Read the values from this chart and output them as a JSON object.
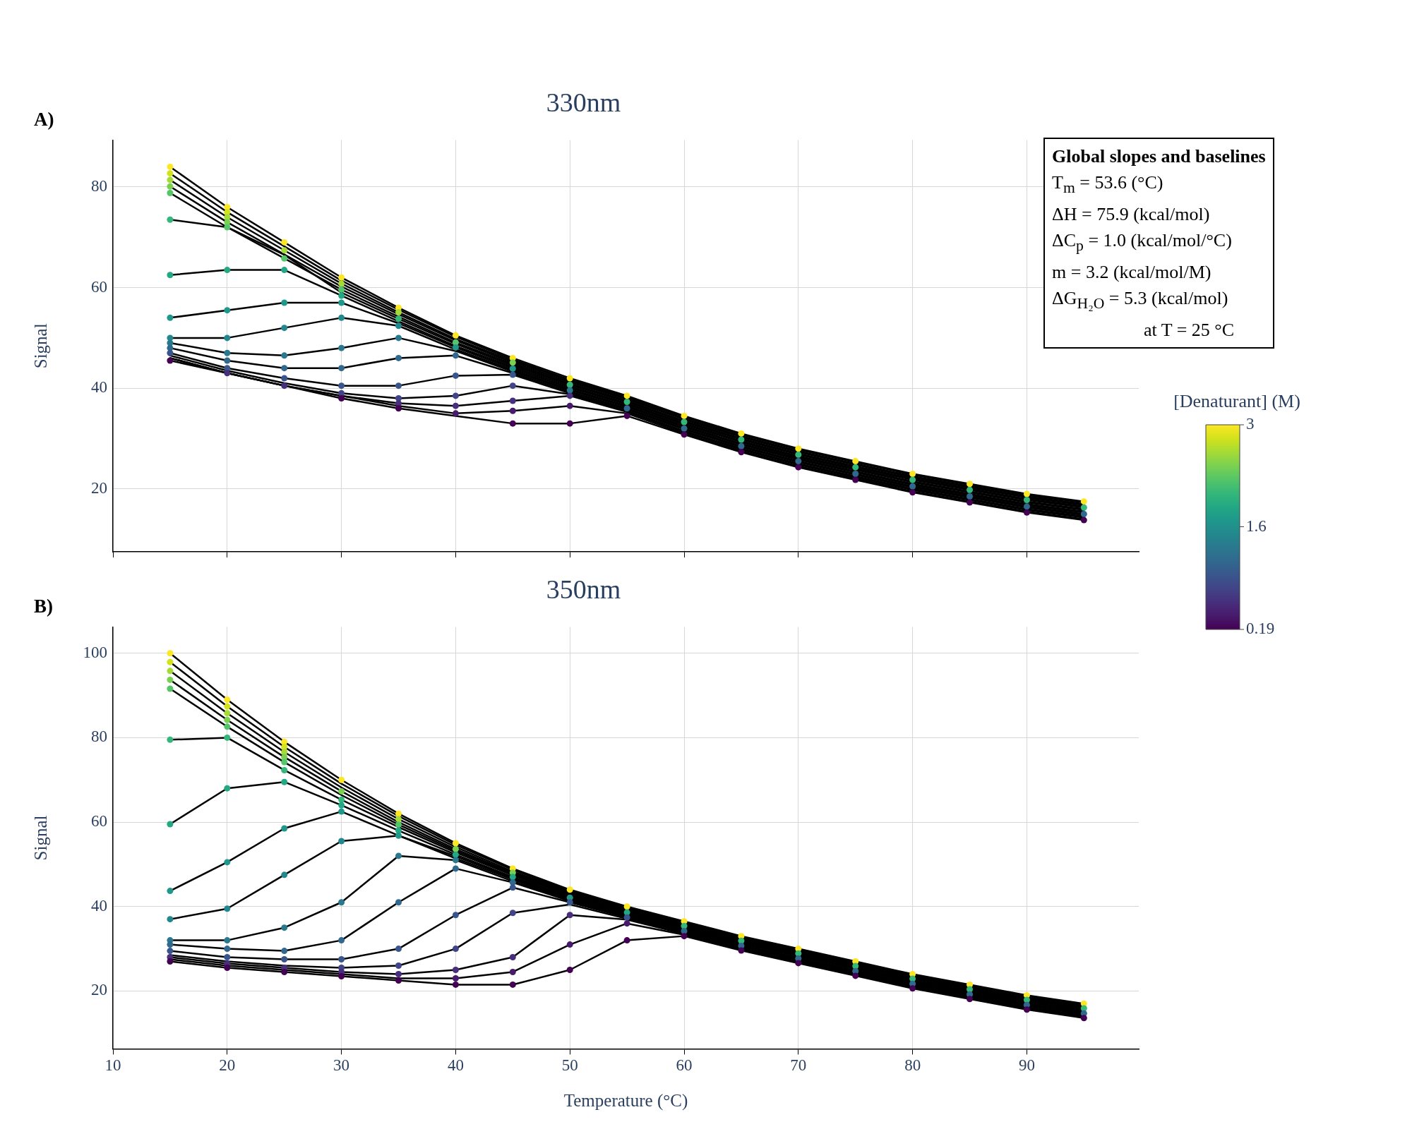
{
  "chart_data": [
    {
      "type": "scatter",
      "title": "330nm",
      "ylabel": "Signal",
      "annotations": [
        "A)",
        "Global slopes and baselines",
        "T$_{m}$ = 53.6 (°C)",
        "ΔH = 75.9 (kcal/mol)",
        "ΔC$_{p}$ = 1.0 (kcal/mol/°C)",
        "m = 3.2 (kcal/mol/M)",
        "ΔG$_{H₂O}$ = 5.3 (kcal/mol)",
        "at T = 25 °C"
      ],
      "x": [
        15,
        20,
        25,
        30,
        35,
        40,
        45,
        50,
        55,
        60,
        65,
        70,
        75,
        80,
        85,
        90,
        95
      ],
      "xlim": [
        10,
        99.8
      ],
      "xticks": [
        10,
        20,
        30,
        40,
        50,
        60,
        70,
        80,
        90
      ],
      "ylim": [
        7.5,
        89.3
      ],
      "yticks": [
        20,
        40,
        60,
        80
      ],
      "grid": true,
      "marker": "circle",
      "tick_labels": "y",
      "clim": [
        0.19,
        3
      ],
      "cticks": [
        0.19,
        1.6,
        3
      ],
      "clabel": "[Denaturant] (M)",
      "series": [
        {
          "type": "scatter",
          "color": "#440154",
          "values": [
            45.5,
            null,
            null,
            38,
            36,
            null,
            33,
            33,
            34.5,
            30.8,
            27.3,
            24.3,
            21.8,
            19.3,
            17.3,
            15.3,
            13.8
          ]
        },
        {
          "type": "scatter",
          "color": "#481a6c",
          "values": [
            null,
            null,
            null,
            null,
            null,
            35,
            35.5,
            36.5,
            null,
            null,
            null,
            null,
            null,
            null,
            null,
            null,
            null
          ]
        },
        {
          "type": "scatter",
          "color": "#472f7d",
          "values": [
            null,
            43,
            40.5,
            null,
            37,
            36.5,
            37.5,
            38.5,
            null,
            null,
            null,
            null,
            null,
            null,
            null,
            null,
            null
          ]
        },
        {
          "type": "scatter",
          "color": "#414487",
          "values": [
            null,
            null,
            null,
            39,
            38,
            38.5,
            40.5,
            null,
            null,
            null,
            null,
            null,
            null,
            null,
            null,
            null,
            null
          ]
        },
        {
          "type": "scatter",
          "color": "#39568c",
          "values": [
            47,
            44,
            42,
            40.5,
            40.5,
            42.5,
            42.7,
            null,
            null,
            null,
            null,
            null,
            null,
            null,
            null,
            null,
            null
          ]
        },
        {
          "type": "scatter",
          "color": "#31688e",
          "values": [
            48,
            45.5,
            44,
            44,
            46,
            46.5,
            null,
            null,
            36,
            32,
            28.5,
            25.5,
            23,
            20.5,
            18.5,
            16.5,
            15
          ]
        },
        {
          "type": "scatter",
          "color": "#2a788e",
          "values": [
            49,
            47,
            46.5,
            48,
            50,
            null,
            null,
            39.6,
            null,
            null,
            null,
            null,
            null,
            null,
            null,
            null,
            null
          ]
        },
        {
          "type": "scatter",
          "color": "#23888e",
          "values": [
            50,
            50,
            52,
            54,
            52.4,
            null,
            null,
            null,
            null,
            null,
            null,
            null,
            null,
            null,
            null,
            null,
            null
          ]
        },
        {
          "type": "scatter",
          "color": "#1f988b",
          "values": [
            54,
            55.5,
            57,
            57,
            null,
            48.1,
            43.9,
            null,
            null,
            null,
            null,
            null,
            null,
            null,
            null,
            null,
            null
          ]
        },
        {
          "type": "scatter",
          "color": "#22a884",
          "values": [
            62.5,
            63.5,
            63.5,
            58.4,
            null,
            null,
            null,
            null,
            null,
            null,
            null,
            null,
            null,
            null,
            null,
            null,
            null
          ]
        },
        {
          "type": "scatter",
          "color": "#35b779",
          "values": [
            73.5,
            null,
            null,
            null,
            53.8,
            null,
            null,
            40.7,
            37.3,
            33.3,
            29.8,
            26.8,
            24.3,
            21.8,
            19.8,
            17.8,
            16.3
          ]
        },
        {
          "type": "scatter",
          "color": "#54c568",
          "values": [
            78.8,
            72,
            65.8,
            59.6,
            null,
            49.1,
            null,
            null,
            null,
            null,
            null,
            null,
            null,
            null,
            null,
            null,
            null
          ]
        },
        {
          "type": "scatter",
          "color": "#7ad151",
          "values": [
            80.1,
            73,
            null,
            null,
            null,
            null,
            45.1,
            null,
            null,
            null,
            null,
            null,
            null,
            null,
            null,
            null,
            null
          ]
        },
        {
          "type": "scatter",
          "color": "#a5db36",
          "values": [
            81.4,
            74,
            67.4,
            60.8,
            55.1,
            null,
            null,
            null,
            null,
            null,
            null,
            null,
            null,
            null,
            null,
            null,
            null
          ]
        },
        {
          "type": "scatter",
          "color": "#d2e21b",
          "values": [
            82.7,
            75,
            null,
            null,
            null,
            null,
            null,
            null,
            null,
            null,
            null,
            null,
            null,
            null,
            null,
            null,
            null
          ]
        },
        {
          "type": "scatter",
          "color": "#fde725",
          "values": [
            84,
            76,
            69,
            62,
            56,
            50.5,
            46,
            42,
            38.5,
            34.5,
            31,
            28,
            25.5,
            23,
            21,
            19,
            17.5
          ]
        },
        {
          "type": "line",
          "marker": "none",
          "color": "#000000",
          "values": [
            45.5,
            43,
            40.5,
            38,
            36,
            34.5,
            33,
            33,
            34.5,
            30.8,
            27.3,
            24.3,
            21.8,
            19.3,
            17.3,
            15.3,
            13.8
          ]
        },
        {
          "type": "line",
          "marker": "none",
          "color": "#000000",
          "values": [
            46,
            43,
            40.5,
            38.5,
            36.5,
            35,
            35.5,
            36.5,
            35,
            31,
            27.5,
            24.5,
            22,
            19.5,
            17.5,
            15.5,
            14
          ]
        },
        {
          "type": "line",
          "marker": "none",
          "color": "#000000",
          "values": [
            46,
            43,
            40.5,
            38.5,
            37,
            36.5,
            37.5,
            38.5,
            35.3,
            31.3,
            27.8,
            24.8,
            22.3,
            19.8,
            17.8,
            15.8,
            14.3
          ]
        },
        {
          "type": "line",
          "marker": "none",
          "color": "#000000",
          "values": [
            46.5,
            43.5,
            41,
            39,
            38,
            38.5,
            40.5,
            38.8,
            35.5,
            31.5,
            28,
            25,
            22.5,
            20,
            18,
            16,
            14.5
          ]
        },
        {
          "type": "line",
          "marker": "none",
          "color": "#000000",
          "values": [
            47,
            44,
            42,
            40.5,
            40.5,
            42.5,
            42.7,
            39,
            35.8,
            31.8,
            28.3,
            25.3,
            22.8,
            20.3,
            18.3,
            16.3,
            14.8
          ]
        },
        {
          "type": "line",
          "marker": "none",
          "color": "#000000",
          "values": [
            48,
            45.5,
            44,
            44,
            46,
            46.5,
            43,
            39.3,
            36,
            32,
            28.5,
            25.5,
            23,
            20.5,
            18.5,
            16.5,
            15
          ]
        },
        {
          "type": "line",
          "marker": "none",
          "color": "#000000",
          "values": [
            49,
            47,
            46.5,
            48,
            50,
            47.4,
            43.3,
            39.6,
            36.3,
            32.3,
            28.8,
            25.8,
            23.3,
            20.8,
            18.8,
            16.8,
            15.3
          ]
        },
        {
          "type": "line",
          "marker": "none",
          "color": "#000000",
          "values": [
            50,
            50,
            52,
            54,
            52.4,
            47.7,
            43.6,
            39.8,
            36.5,
            32.5,
            29,
            26,
            23.5,
            21,
            19,
            17,
            15.5
          ]
        },
        {
          "type": "line",
          "marker": "none",
          "color": "#000000",
          "values": [
            54,
            55.5,
            57,
            57,
            52.9,
            48.1,
            43.9,
            40.1,
            36.8,
            32.8,
            29.3,
            26.3,
            23.8,
            21.3,
            19.3,
            17.3,
            15.8
          ]
        },
        {
          "type": "line",
          "marker": "none",
          "color": "#000000",
          "values": [
            62.5,
            63.5,
            63.5,
            58.4,
            53.3,
            48.4,
            44.2,
            40.4,
            37,
            33,
            29.5,
            26.5,
            24,
            21.5,
            19.5,
            17.5,
            16
          ]
        },
        {
          "type": "line",
          "marker": "none",
          "color": "#000000",
          "values": [
            73.5,
            72,
            66.5,
            59,
            53.8,
            48.8,
            44.5,
            40.7,
            37.3,
            33.3,
            29.8,
            26.8,
            24.3,
            21.8,
            19.8,
            17.8,
            16.3
          ]
        },
        {
          "type": "line",
          "marker": "none",
          "color": "#000000",
          "values": [
            78.8,
            72,
            65.8,
            59.6,
            54.2,
            49.1,
            44.8,
            40.9,
            37.5,
            33.5,
            30,
            27,
            24.5,
            22,
            20,
            18,
            16.5
          ]
        },
        {
          "type": "line",
          "marker": "none",
          "color": "#000000",
          "values": [
            80.1,
            73,
            66.6,
            60.2,
            54.7,
            49.5,
            45.1,
            41.2,
            37.8,
            33.8,
            30.3,
            27.3,
            24.8,
            22.3,
            20.3,
            18.3,
            16.8
          ]
        },
        {
          "type": "line",
          "marker": "none",
          "color": "#000000",
          "values": [
            81.4,
            74,
            67.4,
            60.8,
            55.1,
            49.8,
            45.4,
            41.5,
            38,
            34,
            30.5,
            27.5,
            25,
            22.5,
            20.5,
            18.5,
            17
          ]
        },
        {
          "type": "line",
          "marker": "none",
          "color": "#000000",
          "values": [
            82.7,
            75,
            68.2,
            61.4,
            55.6,
            50.2,
            45.7,
            41.7,
            38.3,
            34.3,
            30.8,
            27.8,
            25.3,
            22.8,
            20.8,
            18.8,
            17.3
          ]
        },
        {
          "type": "line",
          "marker": "none",
          "color": "#000000",
          "values": [
            84,
            76,
            69,
            62,
            56,
            50.5,
            46,
            42,
            38.5,
            34.5,
            31,
            28,
            25.5,
            23,
            21,
            19,
            17.5
          ]
        }
      ]
    },
    {
      "type": "scatter",
      "title": "350nm",
      "xlabel": "Temperature (°C)",
      "ylabel": "Signal",
      "annotations": [
        "B)"
      ],
      "x": [
        15,
        20,
        25,
        30,
        35,
        40,
        45,
        50,
        55,
        60,
        65,
        70,
        75,
        80,
        85,
        90,
        95
      ],
      "xlim": [
        10,
        99.8
      ],
      "xticks": [
        10,
        20,
        30,
        40,
        50,
        60,
        70,
        80,
        90
      ],
      "ylim": [
        6.3,
        106.2
      ],
      "yticks": [
        20,
        40,
        60,
        80,
        100
      ],
      "grid": true,
      "marker": "circle",
      "series": [
        {
          "type": "scatter",
          "color": "#440154",
          "values": [
            27,
            25.5,
            24.5,
            23.5,
            22.5,
            21.5,
            21.5,
            25,
            32,
            33,
            29.6,
            26.6,
            23.6,
            20.6,
            18.1,
            15.6,
            13.6
          ]
        },
        {
          "type": "scatter",
          "color": "#481a6c",
          "values": [
            null,
            null,
            null,
            null,
            null,
            23,
            24.5,
            31,
            36,
            null,
            null,
            null,
            null,
            null,
            null,
            null,
            null
          ]
        },
        {
          "type": "scatter",
          "color": "#472f7d",
          "values": [
            28,
            26.5,
            25.5,
            24.5,
            24,
            25,
            28,
            38,
            null,
            null,
            null,
            null,
            null,
            null,
            null,
            null,
            null
          ]
        },
        {
          "type": "scatter",
          "color": "#414487",
          "values": [
            null,
            null,
            null,
            25.5,
            26,
            30,
            38.5,
            null,
            null,
            null,
            null,
            null,
            null,
            null,
            null,
            null,
            null
          ]
        },
        {
          "type": "scatter",
          "color": "#39568c",
          "values": [
            29.5,
            28,
            27.5,
            27.5,
            30,
            38,
            44.5,
            41,
            37.4,
            null,
            null,
            null,
            null,
            null,
            null,
            null,
            null
          ]
        },
        {
          "type": "scatter",
          "color": "#31688e",
          "values": [
            31,
            30,
            29.5,
            32,
            41,
            49,
            45.7,
            null,
            null,
            34.2,
            30.7,
            27.7,
            24.7,
            21.7,
            19.2,
            16.7,
            14.7
          ]
        },
        {
          "type": "scatter",
          "color": "#2a788e",
          "values": [
            32,
            32,
            35,
            41,
            52,
            51,
            null,
            null,
            null,
            null,
            null,
            null,
            null,
            null,
            null,
            null,
            null
          ]
        },
        {
          "type": "scatter",
          "color": "#23888e",
          "values": [
            37,
            39.5,
            47.5,
            55.5,
            null,
            null,
            null,
            null,
            null,
            null,
            null,
            null,
            null,
            null,
            null,
            null,
            null
          ]
        },
        {
          "type": "scatter",
          "color": "#1f988b",
          "values": [
            43.7,
            50.5,
            58.5,
            62.5,
            56.8,
            null,
            null,
            42.1,
            null,
            null,
            null,
            null,
            null,
            null,
            null,
            null,
            null
          ]
        },
        {
          "type": "scatter",
          "color": "#22a884",
          "values": [
            59.5,
            68,
            69.5,
            64,
            58,
            52.3,
            47,
            null,
            38.6,
            null,
            null,
            null,
            null,
            null,
            null,
            null,
            null
          ]
        },
        {
          "type": "scatter",
          "color": "#35b779",
          "values": [
            79.5,
            80,
            72.3,
            65.3,
            null,
            null,
            null,
            null,
            null,
            35.4,
            31.9,
            28.9,
            25.9,
            22.9,
            20.4,
            17.9,
            15.9
          ]
        },
        {
          "type": "scatter",
          "color": "#54c568",
          "values": [
            91.6,
            82.6,
            74.2,
            null,
            59.4,
            null,
            null,
            null,
            null,
            null,
            null,
            null,
            null,
            null,
            null,
            null,
            null
          ]
        },
        {
          "type": "scatter",
          "color": "#7ad151",
          "values": [
            93.7,
            84.2,
            75.4,
            67.3,
            null,
            53.6,
            48,
            null,
            null,
            null,
            null,
            null,
            null,
            null,
            null,
            null,
            null
          ]
        },
        {
          "type": "scatter",
          "color": "#a5db36",
          "values": [
            95.8,
            85.8,
            76.6,
            null,
            60.7,
            null,
            null,
            null,
            null,
            null,
            null,
            null,
            null,
            null,
            null,
            null,
            null
          ]
        },
        {
          "type": "scatter",
          "color": "#d2e21b",
          "values": [
            97.9,
            87.4,
            77.8,
            null,
            null,
            null,
            null,
            null,
            null,
            null,
            null,
            null,
            null,
            null,
            null,
            null,
            null
          ]
        },
        {
          "type": "scatter",
          "color": "#fde725",
          "values": [
            100,
            89,
            79,
            70,
            62,
            55,
            49,
            44,
            40,
            36.5,
            33,
            30,
            27,
            24,
            21.5,
            19,
            17
          ]
        },
        {
          "type": "line",
          "marker": "none",
          "color": "#000000",
          "values": [
            27,
            25.5,
            24.5,
            23.5,
            22.5,
            21.5,
            21.5,
            25,
            32,
            33,
            29.6,
            26.6,
            23.6,
            20.6,
            18.1,
            15.6,
            13.6
          ]
        },
        {
          "type": "line",
          "marker": "none",
          "color": "#000000",
          "values": [
            27.5,
            26,
            25,
            24,
            23,
            23,
            24.5,
            31,
            36,
            33.3,
            29.8,
            26.8,
            23.8,
            20.8,
            18.3,
            15.8,
            13.8
          ]
        },
        {
          "type": "line",
          "marker": "none",
          "color": "#000000",
          "values": [
            28,
            26.5,
            25.5,
            24.5,
            24,
            25,
            28,
            38,
            36.9,
            33.5,
            30,
            27,
            24,
            21,
            18.5,
            16,
            14
          ]
        },
        {
          "type": "line",
          "marker": "none",
          "color": "#000000",
          "values": [
            28.5,
            27,
            26,
            25.5,
            26,
            30,
            38.5,
            40.5,
            37.1,
            33.7,
            30.2,
            27.2,
            24.2,
            21.2,
            18.7,
            16.2,
            14.2
          ]
        },
        {
          "type": "line",
          "marker": "none",
          "color": "#000000",
          "values": [
            29.5,
            28,
            27.5,
            27.5,
            30,
            38,
            44.5,
            41,
            37.4,
            34,
            30.5,
            27.5,
            24.5,
            21.5,
            19,
            16.5,
            14.5
          ]
        },
        {
          "type": "line",
          "marker": "none",
          "color": "#000000",
          "values": [
            31,
            30,
            29.5,
            32,
            41,
            49,
            45.7,
            41.3,
            37.6,
            34.2,
            30.7,
            27.7,
            24.7,
            21.7,
            19.2,
            16.7,
            14.7
          ]
        },
        {
          "type": "line",
          "marker": "none",
          "color": "#000000",
          "values": [
            32,
            32,
            35,
            41,
            52,
            51,
            46,
            41.6,
            37.8,
            34.4,
            30.9,
            27.9,
            24.9,
            21.9,
            19.4,
            16.9,
            14.9
          ]
        },
        {
          "type": "line",
          "marker": "none",
          "color": "#000000",
          "values": [
            37,
            39.5,
            47.5,
            55.5,
            56.8,
            51.4,
            46.4,
            41.8,
            38.1,
            34.7,
            31.2,
            28.2,
            25.2,
            22.2,
            19.7,
            17.2,
            15.2
          ]
        },
        {
          "type": "line",
          "marker": "none",
          "color": "#000000",
          "values": [
            43.7,
            50.5,
            58.5,
            62.5,
            56.8,
            51.9,
            46.7,
            42.1,
            38.3,
            34.9,
            31.4,
            28.4,
            25.4,
            22.4,
            19.9,
            17.4,
            15.4
          ]
        },
        {
          "type": "line",
          "marker": "none",
          "color": "#000000",
          "values": [
            59.5,
            68,
            69.5,
            64,
            58,
            52.3,
            47,
            42.4,
            38.6,
            35.1,
            31.6,
            28.6,
            25.6,
            22.6,
            20.1,
            17.6,
            15.6
          ]
        },
        {
          "type": "line",
          "marker": "none",
          "color": "#000000",
          "values": [
            79.5,
            80,
            72.3,
            65.3,
            58.8,
            52.8,
            47.4,
            42.7,
            38.8,
            35.4,
            31.9,
            28.9,
            25.9,
            22.9,
            20.4,
            17.9,
            15.9
          ]
        },
        {
          "type": "line",
          "marker": "none",
          "color": "#000000",
          "values": [
            91.6,
            82.6,
            74.2,
            66.4,
            59.4,
            53.2,
            47.7,
            42.9,
            39,
            35.6,
            32.1,
            29.1,
            26.1,
            23.1,
            20.6,
            18.1,
            16.1
          ]
        },
        {
          "type": "line",
          "marker": "none",
          "color": "#000000",
          "values": [
            93.7,
            84.2,
            75.4,
            67.3,
            60,
            53.6,
            48,
            43.2,
            39.3,
            35.8,
            32.3,
            29.3,
            26.3,
            23.3,
            20.8,
            18.3,
            16.3
          ]
        },
        {
          "type": "line",
          "marker": "none",
          "color": "#000000",
          "values": [
            95.8,
            85.8,
            76.6,
            68.2,
            60.7,
            54.1,
            48.3,
            43.5,
            39.5,
            36,
            32.5,
            29.5,
            26.5,
            23.5,
            21,
            18.5,
            16.5
          ]
        },
        {
          "type": "line",
          "marker": "none",
          "color": "#000000",
          "values": [
            97.9,
            87.4,
            77.8,
            69.1,
            61.4,
            54.6,
            48.7,
            43.7,
            39.8,
            36.3,
            32.8,
            29.8,
            26.8,
            23.8,
            21.3,
            18.8,
            16.8
          ]
        },
        {
          "type": "line",
          "marker": "none",
          "color": "#000000",
          "values": [
            100,
            89,
            79,
            70,
            62,
            55,
            49,
            44,
            40,
            36.5,
            33,
            30,
            27,
            24,
            21.5,
            19,
            17
          ]
        }
      ]
    }
  ]
}
